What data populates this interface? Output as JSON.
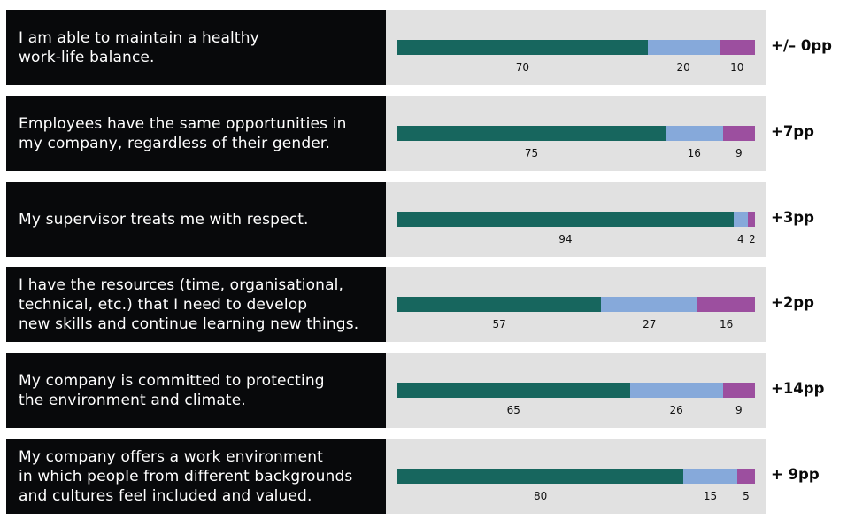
{
  "colors": {
    "label_bg": "#08090b",
    "bar_bg": "#e1e1e1",
    "agree": "#17665e",
    "neutral": "#86a9da",
    "disagree": "#9c4f9f"
  },
  "chart_data": {
    "type": "bar",
    "orientation": "horizontal",
    "stacked": true,
    "unit": "percent",
    "categories": [
      "I am able to maintain a healthy\nwork-life balance.",
      "Employees have the same opportunities in\nmy company, regardless of their gender.",
      "My supervisor treats me with respect.",
      "I have the resources (time, organisational,\ntechnical, etc.) that I need to develop\nnew skills and continue learning new things.",
      "My company is committed to protecting\nthe environment and climate.",
      "My company offers a work environment\nin which people from different backgrounds\nand cultures feel included and valued."
    ],
    "series": [
      {
        "values": [
          70,
          75,
          94,
          57,
          65,
          80
        ]
      },
      {
        "values": [
          20,
          16,
          4,
          27,
          26,
          15
        ]
      },
      {
        "values": [
          10,
          9,
          2,
          16,
          9,
          5
        ]
      }
    ],
    "segment_labels": [
      [
        "70",
        "20",
        "10"
      ],
      [
        "75",
        "16",
        "9"
      ],
      [
        "94",
        "4",
        "2"
      ],
      [
        "57",
        "27",
        "16"
      ],
      [
        "65",
        "26",
        "9"
      ],
      [
        "80",
        "15",
        "5"
      ]
    ],
    "changes": [
      "+/– 0pp",
      "+7pp",
      "+3pp",
      "+2pp",
      "+14pp",
      "+ 9pp"
    ],
    "xlim": [
      0,
      100
    ],
    "legend": "none",
    "grid": false
  }
}
